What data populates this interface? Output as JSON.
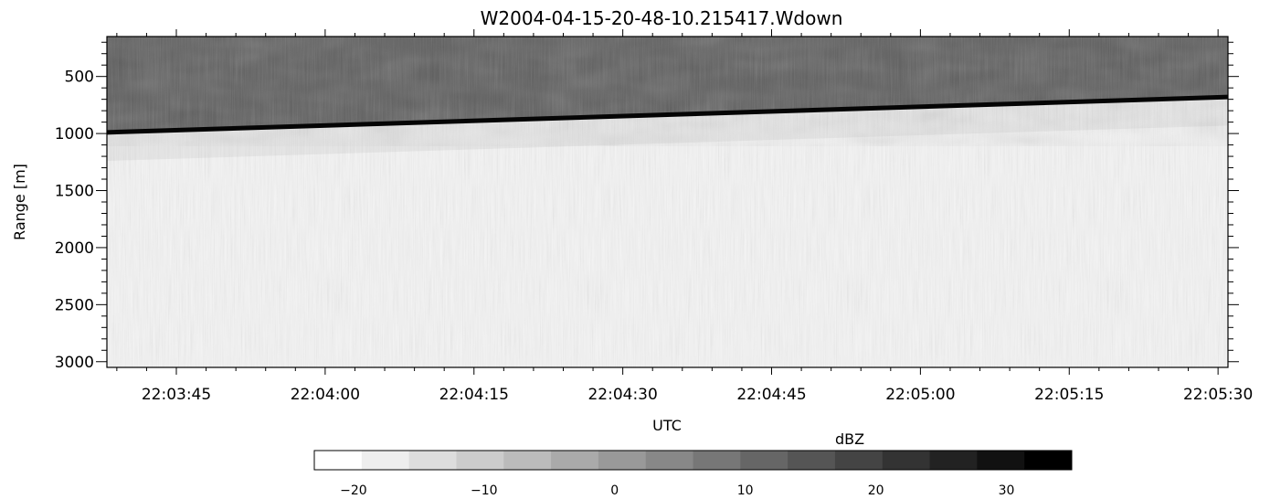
{
  "chart_data": {
    "type": "heatmap",
    "title": "W2004-04-15-20-48-10.215417.Wdown",
    "xlabel": "UTC",
    "ylabel": "Range [m]",
    "x_ticks": [
      "22:03:45",
      "22:04:00",
      "22:04:15",
      "22:04:30",
      "22:04:45",
      "22:05:00",
      "22:05:15",
      "22:05:30"
    ],
    "x_range": [
      "22:03:38",
      "22:05:31"
    ],
    "y_ticks": [
      500,
      1000,
      1500,
      2000,
      2500,
      3000
    ],
    "y_range": [
      150,
      3050
    ],
    "y_inverted": true,
    "colorbar": {
      "label": "dBZ",
      "range": [
        -23,
        35
      ],
      "ticks": [
        -20,
        -10,
        0,
        10,
        20,
        30
      ],
      "colormap": "greyscale",
      "low_color": "#ffffff",
      "high_color": "#000000"
    },
    "features": {
      "surface_echo_line": {
        "description": "strong echo line (near 35 dBZ)",
        "x": [
          "22:03:38",
          "22:05:31"
        ],
        "range_m": [
          990,
          680
        ]
      },
      "above_line_dbz_approx": 17,
      "below_line_dbz_approx": -17
    }
  }
}
